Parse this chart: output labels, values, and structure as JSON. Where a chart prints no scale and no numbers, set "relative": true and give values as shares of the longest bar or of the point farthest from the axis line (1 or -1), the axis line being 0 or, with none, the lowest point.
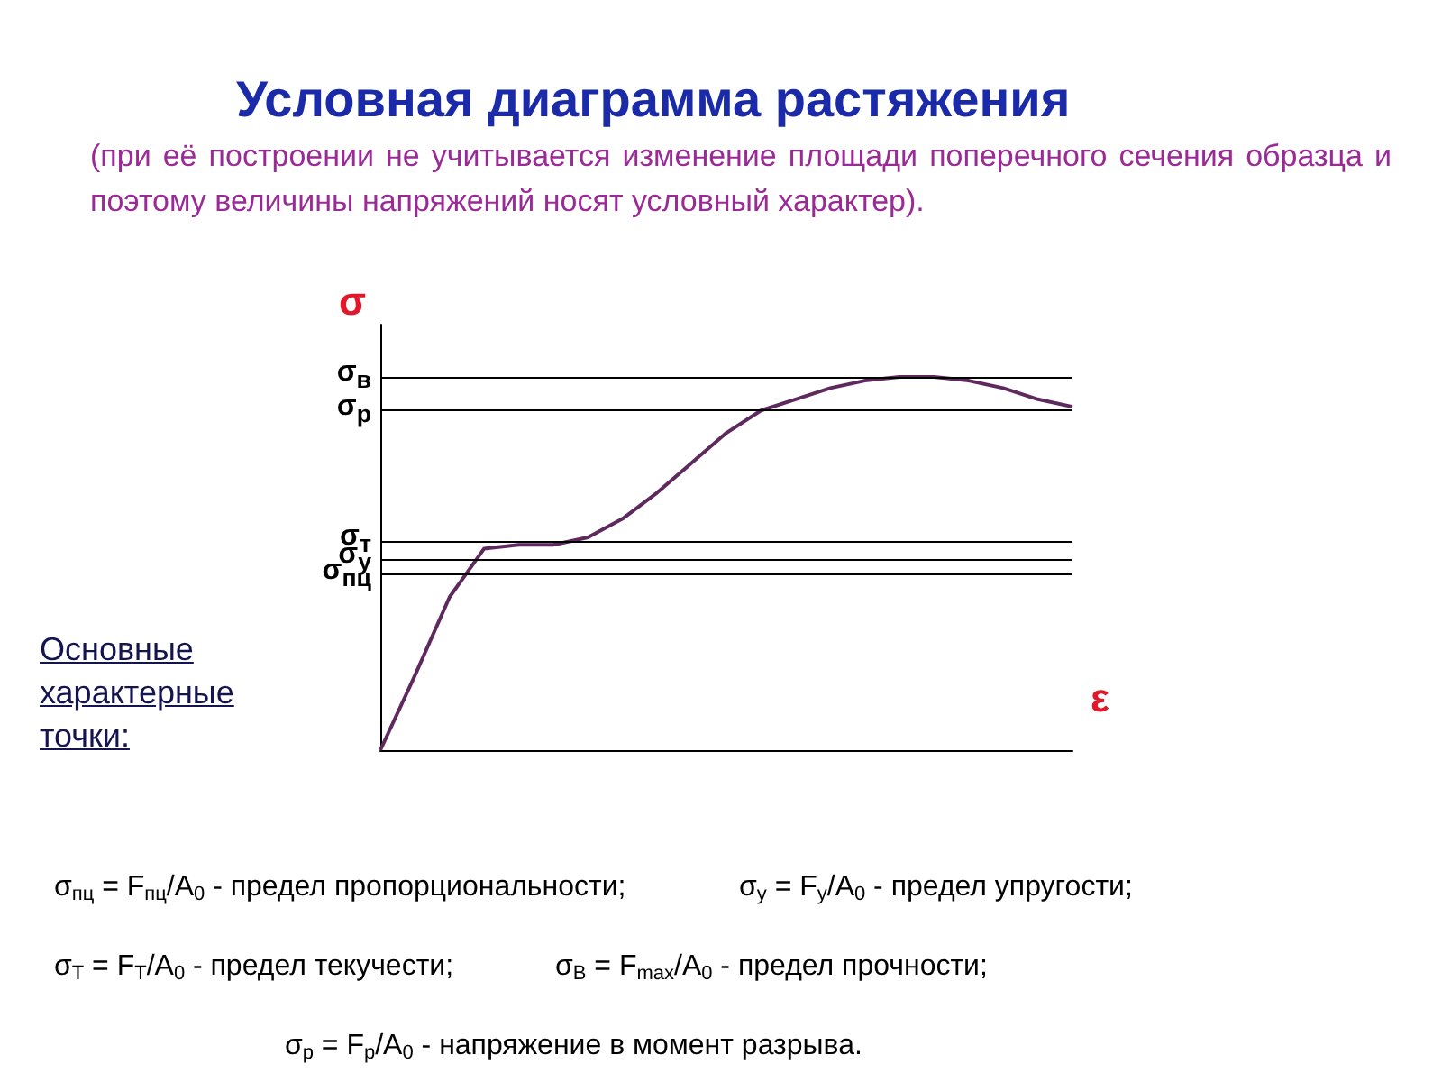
{
  "chart_data": {
    "type": "line",
    "title": "Условная диаграмма растяжения",
    "subtitle": "(при её построении не учитывается изменение площади поперечного сечения образца и поэтому величины напряжений носят условный характер).",
    "xlabel": "ε",
    "ylabel": "σ",
    "relative": true,
    "color": "#5e2a5e",
    "marker": "none",
    "line_style": "solid",
    "grid": false,
    "categories": [
      null,
      null,
      null,
      null,
      null,
      null,
      null,
      null,
      null,
      null,
      null,
      null,
      null,
      null,
      null,
      null,
      null,
      null,
      null,
      null,
      null
    ],
    "values": [
      0,
      0.2,
      0.41,
      0.54,
      0.55,
      0.55,
      0.57,
      0.62,
      0.69,
      0.77,
      0.85,
      0.91,
      0.94,
      0.97,
      0.99,
      1.0,
      1,
      0.99,
      0.97,
      0.94,
      0.92
    ],
    "ref_lines": [
      {
        "axis": "y",
        "value": 1,
        "label": "σ$_{в}$",
        "color": "#000000"
      },
      {
        "axis": "y",
        "value": 0.91,
        "label": "σ$_{р}$",
        "color": "#000000"
      },
      {
        "axis": "y",
        "value": 0.56,
        "label": "σ$_{т}$",
        "color": "#000000"
      },
      {
        "axis": "y",
        "value": 0.51,
        "label": "σ$_{у}$",
        "color": "#000000"
      },
      {
        "axis": "y",
        "value": 0.47,
        "label": "σ$_{пц}$",
        "color": "#000000"
      }
    ],
    "annotations": [
      "Основные характерные точки:",
      "σ$_{пц}$ = F$_{пц}$/A$_{0}$ - предел пропорциональности;",
      "σ$_{у}$ = F$_{у}$/A$_{0}$ - предел упругости;",
      "σ$_{Т}$ = F$_{Т}$/A$_{0}$ - предел текучести;",
      "σ$_{В}$ = F$_{max}$/A$_{0}$ - предел прочности;",
      "σ$_{р}$ = F$_{р}$/A$_{0}$ - напряжение в момент разрыва."
    ]
  }
}
